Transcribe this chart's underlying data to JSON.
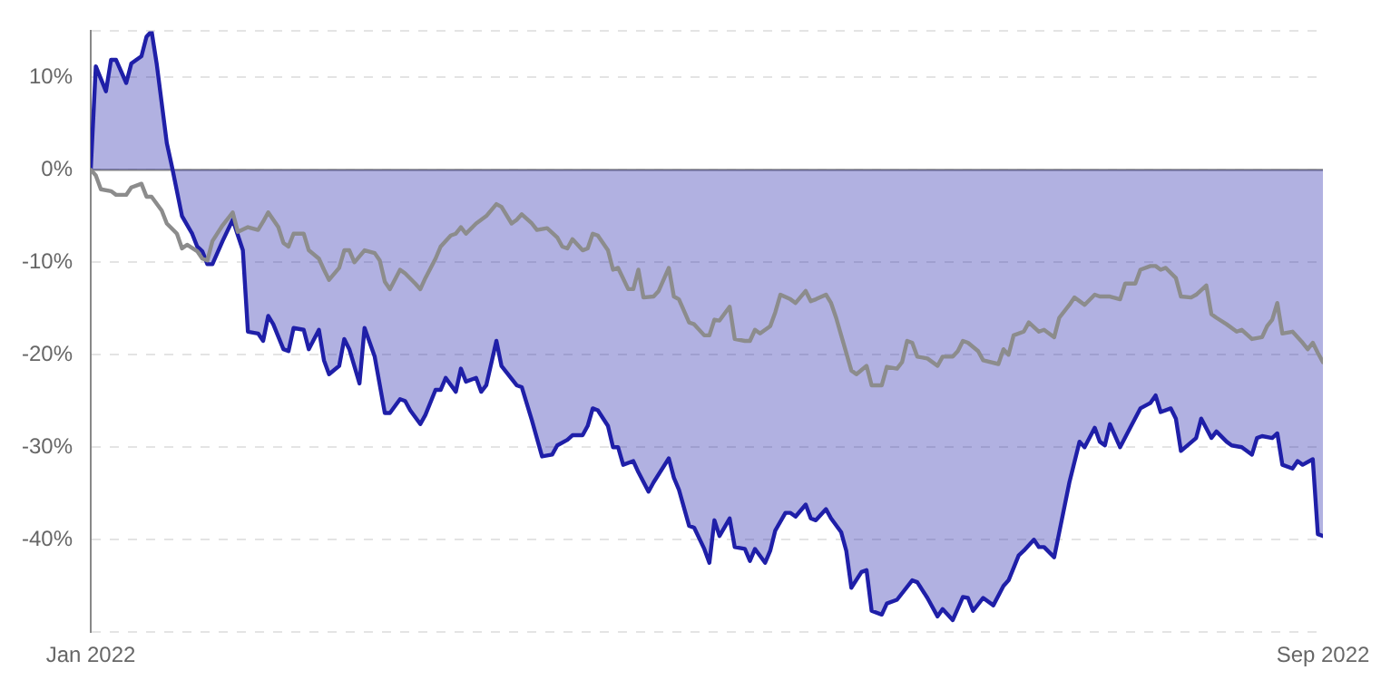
{
  "chart_data": {
    "type": "line",
    "grid": "y",
    "legend": false,
    "marker": "none",
    "line_style": "solid",
    "xlim": [
      "2022-01-01",
      "2022-09-01"
    ],
    "xticks": [
      {
        "value": "2022-01-01",
        "label": "Jan 2022"
      },
      {
        "value": "2022-09-01",
        "label": "Sep 2022"
      }
    ],
    "ylim": [
      -50,
      15
    ],
    "yticks": [
      {
        "value": -50,
        "label": null
      },
      {
        "value": -40,
        "label": "-40%"
      },
      {
        "value": -30,
        "label": "-30%"
      },
      {
        "value": -20,
        "label": "-20%"
      },
      {
        "value": -10,
        "label": "-10%"
      },
      {
        "value": 0,
        "label": "0%"
      },
      {
        "value": 10,
        "label": "10%"
      },
      {
        "value": 15,
        "label": null
      }
    ],
    "ref_lines": [
      {
        "axis": "y",
        "value": 0,
        "color": "#888888"
      }
    ],
    "series": [
      {
        "type": "area",
        "color": "#1f1fa8",
        "x": [
          "2022-01-01",
          "2022-01-02",
          "2022-01-04",
          "2022-01-05",
          "2022-01-06",
          "2022-01-08",
          "2022-01-09",
          "2022-01-11",
          "2022-01-12",
          "2022-01-13",
          "2022-01-14",
          "2022-01-16",
          "2022-01-17",
          "2022-01-19",
          "2022-01-21",
          "2022-01-22",
          "2022-01-23",
          "2022-01-24",
          "2022-01-25",
          "2022-01-27",
          "2022-01-29",
          "2022-01-31",
          "2022-02-01",
          "2022-02-03",
          "2022-02-04",
          "2022-02-05",
          "2022-02-06",
          "2022-02-08",
          "2022-02-09",
          "2022-02-10",
          "2022-02-12",
          "2022-02-13",
          "2022-02-15",
          "2022-02-16",
          "2022-02-17",
          "2022-02-19",
          "2022-02-20",
          "2022-02-21",
          "2022-02-23",
          "2022-02-24",
          "2022-02-26",
          "2022-02-28",
          "2022-03-01",
          "2022-03-03",
          "2022-03-04",
          "2022-03-05",
          "2022-03-07",
          "2022-03-08",
          "2022-03-10",
          "2022-03-11",
          "2022-03-12",
          "2022-03-14",
          "2022-03-15",
          "2022-03-16",
          "2022-03-18",
          "2022-03-19",
          "2022-03-20",
          "2022-03-22",
          "2022-03-23",
          "2022-03-26",
          "2022-03-27",
          "2022-03-29",
          "2022-03-31",
          "2022-04-02",
          "2022-04-03",
          "2022-04-05",
          "2022-04-06",
          "2022-04-08",
          "2022-04-09",
          "2022-04-10",
          "2022-04-11",
          "2022-04-13",
          "2022-04-14",
          "2022-04-15",
          "2022-04-16",
          "2022-04-18",
          "2022-04-19",
          "2022-04-21",
          "2022-04-22",
          "2022-04-25",
          "2022-04-26",
          "2022-04-27",
          "2022-04-29",
          "2022-04-30",
          "2022-05-02",
          "2022-05-03",
          "2022-05-04",
          "2022-05-05",
          "2022-05-07",
          "2022-05-08",
          "2022-05-10",
          "2022-05-11",
          "2022-05-12",
          "2022-05-14",
          "2022-05-15",
          "2022-05-16",
          "2022-05-18",
          "2022-05-19",
          "2022-05-20",
          "2022-05-22",
          "2022-05-23",
          "2022-05-24",
          "2022-05-26",
          "2022-05-27",
          "2022-05-29",
          "2022-05-30",
          "2022-05-31",
          "2022-06-02",
          "2022-06-03",
          "2022-06-04",
          "2022-06-06",
          "2022-06-07",
          "2022-06-09",
          "2022-06-12",
          "2022-06-13",
          "2022-06-15",
          "2022-06-17",
          "2022-06-18",
          "2022-06-20",
          "2022-06-22",
          "2022-06-23",
          "2022-06-24",
          "2022-06-26",
          "2022-06-28",
          "2022-06-30",
          "2022-07-01",
          "2022-07-03",
          "2022-07-04",
          "2022-07-06",
          "2022-07-07",
          "2022-07-08",
          "2022-07-10",
          "2022-07-11",
          "2022-07-13",
          "2022-07-15",
          "2022-07-16",
          "2022-07-18",
          "2022-07-19",
          "2022-07-20",
          "2022-07-21",
          "2022-07-23",
          "2022-07-25",
          "2022-07-27",
          "2022-07-29",
          "2022-07-30",
          "2022-07-31",
          "2022-08-02",
          "2022-08-03",
          "2022-08-04",
          "2022-08-07",
          "2022-08-08",
          "2022-08-10",
          "2022-08-11",
          "2022-08-13",
          "2022-08-14",
          "2022-08-16",
          "2022-08-18",
          "2022-08-19",
          "2022-08-20",
          "2022-08-22",
          "2022-08-23",
          "2022-08-24",
          "2022-08-26",
          "2022-08-27",
          "2022-08-28",
          "2022-08-30",
          "2022-08-31",
          "2022-09-01"
        ],
        "values": [
          0,
          11.2,
          8.5,
          11.9,
          11.9,
          9.4,
          11.5,
          12.3,
          14.4,
          15,
          11.5,
          2.9,
          0.4,
          -5,
          -6.9,
          -8.3,
          -8.8,
          -10.2,
          -10.2,
          -7.7,
          -5.4,
          -8.7,
          -17.5,
          -17.7,
          -18.5,
          -15.8,
          -16.7,
          -19.4,
          -19.6,
          -17.1,
          -17.3,
          -19.4,
          -17.3,
          -20.6,
          -22.1,
          -21.2,
          -18.3,
          -19.4,
          -23.1,
          -17.1,
          -20.2,
          -26.3,
          -26.3,
          -24.8,
          -25,
          -26,
          -27.5,
          -26.5,
          -23.8,
          -23.8,
          -22.5,
          -24,
          -21.5,
          -22.9,
          -22.5,
          -24,
          -23.3,
          -18.5,
          -21.2,
          -23.3,
          -23.5,
          -27.1,
          -31,
          -30.8,
          -29.8,
          -29.2,
          -28.7,
          -28.7,
          -27.7,
          -25.8,
          -26,
          -27.7,
          -30,
          -30,
          -31.9,
          -31.5,
          -32.7,
          -34.8,
          -33.8,
          -31.2,
          -33.3,
          -34.6,
          -38.5,
          -38.7,
          -41,
          -42.5,
          -37.9,
          -39.6,
          -37.7,
          -40.8,
          -41,
          -42.3,
          -41,
          -42.5,
          -41.2,
          -39,
          -37.1,
          -37.1,
          -37.5,
          -36.2,
          -37.7,
          -37.9,
          -36.7,
          -37.7,
          -39.2,
          -41.2,
          -45.2,
          -43.5,
          -43.3,
          -47.7,
          -48.1,
          -46.9,
          -46.5,
          -44.4,
          -44.6,
          -46.3,
          -48.3,
          -47.5,
          -48.7,
          -46.2,
          -46.3,
          -47.7,
          -46.3,
          -47.1,
          -45,
          -44.4,
          -41.7,
          -41.2,
          -40,
          -40.8,
          -40.8,
          -41.9,
          -39.2,
          -33.8,
          -29.4,
          -30,
          -27.9,
          -29.4,
          -29.8,
          -27.5,
          -30,
          -27.9,
          -25.8,
          -25.2,
          -24.4,
          -26.2,
          -25.8,
          -26.9,
          -30.4,
          -29,
          -26.9,
          -29,
          -28.3,
          -29.4,
          -29.8,
          -30,
          -30.8,
          -29,
          -28.8,
          -29,
          -28.5,
          -31.9,
          -32.3,
          -31.5,
          -31.9,
          -31.3,
          -39.4,
          -39.6
        ]
      },
      {
        "type": "line",
        "color": "#8c8c8c",
        "x": [
          "2022-01-01",
          "2022-01-02",
          "2022-01-03",
          "2022-01-05",
          "2022-01-06",
          "2022-01-08",
          "2022-01-09",
          "2022-01-11",
          "2022-01-12",
          "2022-01-13",
          "2022-01-15",
          "2022-01-16",
          "2022-01-18",
          "2022-01-19",
          "2022-01-20",
          "2022-01-22",
          "2022-01-23",
          "2022-01-24",
          "2022-01-25",
          "2022-01-27",
          "2022-01-29",
          "2022-01-30",
          "2022-02-01",
          "2022-02-03",
          "2022-02-04",
          "2022-02-05",
          "2022-02-07",
          "2022-02-08",
          "2022-02-09",
          "2022-02-10",
          "2022-02-12",
          "2022-02-13",
          "2022-02-15",
          "2022-02-16",
          "2022-02-17",
          "2022-02-19",
          "2022-02-20",
          "2022-02-21",
          "2022-02-22",
          "2022-02-24",
          "2022-02-26",
          "2022-02-27",
          "2022-02-28",
          "2022-03-01",
          "2022-03-03",
          "2022-03-04",
          "2022-03-06",
          "2022-03-07",
          "2022-03-08",
          "2022-03-10",
          "2022-03-11",
          "2022-03-13",
          "2022-03-14",
          "2022-03-15",
          "2022-03-16",
          "2022-03-18",
          "2022-03-20",
          "2022-03-22",
          "2022-03-23",
          "2022-03-25",
          "2022-03-26",
          "2022-03-27",
          "2022-03-29",
          "2022-03-30",
          "2022-04-01",
          "2022-04-03",
          "2022-04-04",
          "2022-04-05",
          "2022-04-06",
          "2022-04-08",
          "2022-04-09",
          "2022-04-10",
          "2022-04-11",
          "2022-04-13",
          "2022-04-14",
          "2022-04-15",
          "2022-04-17",
          "2022-04-18",
          "2022-04-19",
          "2022-04-20",
          "2022-04-22",
          "2022-04-23",
          "2022-04-25",
          "2022-04-26",
          "2022-04-27",
          "2022-04-29",
          "2022-04-30",
          "2022-05-02",
          "2022-05-03",
          "2022-05-04",
          "2022-05-05",
          "2022-05-07",
          "2022-05-08",
          "2022-05-10",
          "2022-05-11",
          "2022-05-12",
          "2022-05-13",
          "2022-05-15",
          "2022-05-16",
          "2022-05-17",
          "2022-05-19",
          "2022-05-20",
          "2022-05-22",
          "2022-05-23",
          "2022-05-24",
          "2022-05-26",
          "2022-05-27",
          "2022-05-28",
          "2022-05-29",
          "2022-05-31",
          "2022-06-01",
          "2022-06-03",
          "2022-06-04",
          "2022-06-06",
          "2022-06-07",
          "2022-06-09",
          "2022-06-10",
          "2022-06-11",
          "2022-06-12",
          "2022-06-13",
          "2022-06-15",
          "2022-06-17",
          "2022-06-18",
          "2022-06-20",
          "2022-06-21",
          "2022-06-22",
          "2022-06-23",
          "2022-06-25",
          "2022-06-26",
          "2022-06-29",
          "2022-06-30",
          "2022-07-01",
          "2022-07-02",
          "2022-07-04",
          "2022-07-05",
          "2022-07-07",
          "2022-07-08",
          "2022-07-10",
          "2022-07-11",
          "2022-07-13",
          "2022-07-14",
          "2022-07-15",
          "2022-07-16",
          "2022-07-18",
          "2022-07-19",
          "2022-07-21",
          "2022-07-23",
          "2022-07-24",
          "2022-07-26",
          "2022-07-27",
          "2022-07-29",
          "2022-07-30",
          "2022-07-31",
          "2022-08-01",
          "2022-08-03",
          "2022-08-04",
          "2022-08-06",
          "2022-08-07",
          "2022-08-09",
          "2022-08-10",
          "2022-08-11",
          "2022-08-13",
          "2022-08-15",
          "2022-08-16",
          "2022-08-18",
          "2022-08-20",
          "2022-08-21",
          "2022-08-22",
          "2022-08-23",
          "2022-08-24",
          "2022-08-26",
          "2022-08-28",
          "2022-08-29",
          "2022-08-30",
          "2022-08-31",
          "2022-09-01"
        ],
        "values": [
          0,
          -0.6,
          -2.1,
          -2.3,
          -2.7,
          -2.7,
          -1.9,
          -1.5,
          -2.9,
          -2.9,
          -4.4,
          -5.8,
          -6.9,
          -8.5,
          -8.1,
          -8.8,
          -9.6,
          -9.8,
          -7.7,
          -6,
          -4.6,
          -6.7,
          -6.2,
          -6.5,
          -5.6,
          -4.6,
          -6.2,
          -7.9,
          -8.3,
          -6.9,
          -6.9,
          -8.7,
          -9.6,
          -10.8,
          -11.9,
          -10.6,
          -8.7,
          -8.7,
          -10,
          -8.7,
          -9,
          -9.8,
          -12.1,
          -12.9,
          -10.8,
          -11.2,
          -12.3,
          -12.9,
          -11.7,
          -9.6,
          -8.3,
          -7.1,
          -6.9,
          -6.2,
          -6.9,
          -5.8,
          -5,
          -3.7,
          -4,
          -5.8,
          -5.4,
          -4.8,
          -5.8,
          -6.5,
          -6.3,
          -7.3,
          -8.3,
          -8.5,
          -7.5,
          -8.7,
          -8.5,
          -6.9,
          -7.1,
          -8.7,
          -10.8,
          -10.6,
          -12.9,
          -12.9,
          -10.8,
          -13.8,
          -13.7,
          -13.1,
          -10.6,
          -13.7,
          -14,
          -16.5,
          -16.7,
          -17.9,
          -17.9,
          -16.2,
          -16.3,
          -14.8,
          -18.3,
          -18.5,
          -18.5,
          -17.3,
          -17.7,
          -16.9,
          -15.4,
          -13.5,
          -14,
          -14.4,
          -13.1,
          -14.2,
          -14,
          -13.5,
          -14.4,
          -16,
          -17.9,
          -21.7,
          -22.1,
          -21.2,
          -23.3,
          -23.3,
          -21.3,
          -21.5,
          -20.8,
          -18.5,
          -18.7,
          -20.2,
          -20.4,
          -21.2,
          -20.2,
          -20.2,
          -19.6,
          -18.5,
          -18.7,
          -19.6,
          -20.6,
          -21,
          -19.4,
          -20,
          -17.9,
          -17.5,
          -16.5,
          -17.5,
          -17.3,
          -18.1,
          -16,
          -14.6,
          -13.8,
          -14.2,
          -14.6,
          -13.5,
          -13.7,
          -13.7,
          -14,
          -12.3,
          -12.3,
          -10.8,
          -10.4,
          -10.4,
          -10.8,
          -10.6,
          -11.7,
          -13.7,
          -13.8,
          -13.5,
          -12.5,
          -15.6,
          -16,
          -16.7,
          -17.5,
          -17.3,
          -18.3,
          -18.1,
          -16.9,
          -16.2,
          -14.4,
          -17.7,
          -17.5,
          -18.7,
          -19.4,
          -18.7,
          -19.8,
          -20.8
        ]
      }
    ]
  }
}
